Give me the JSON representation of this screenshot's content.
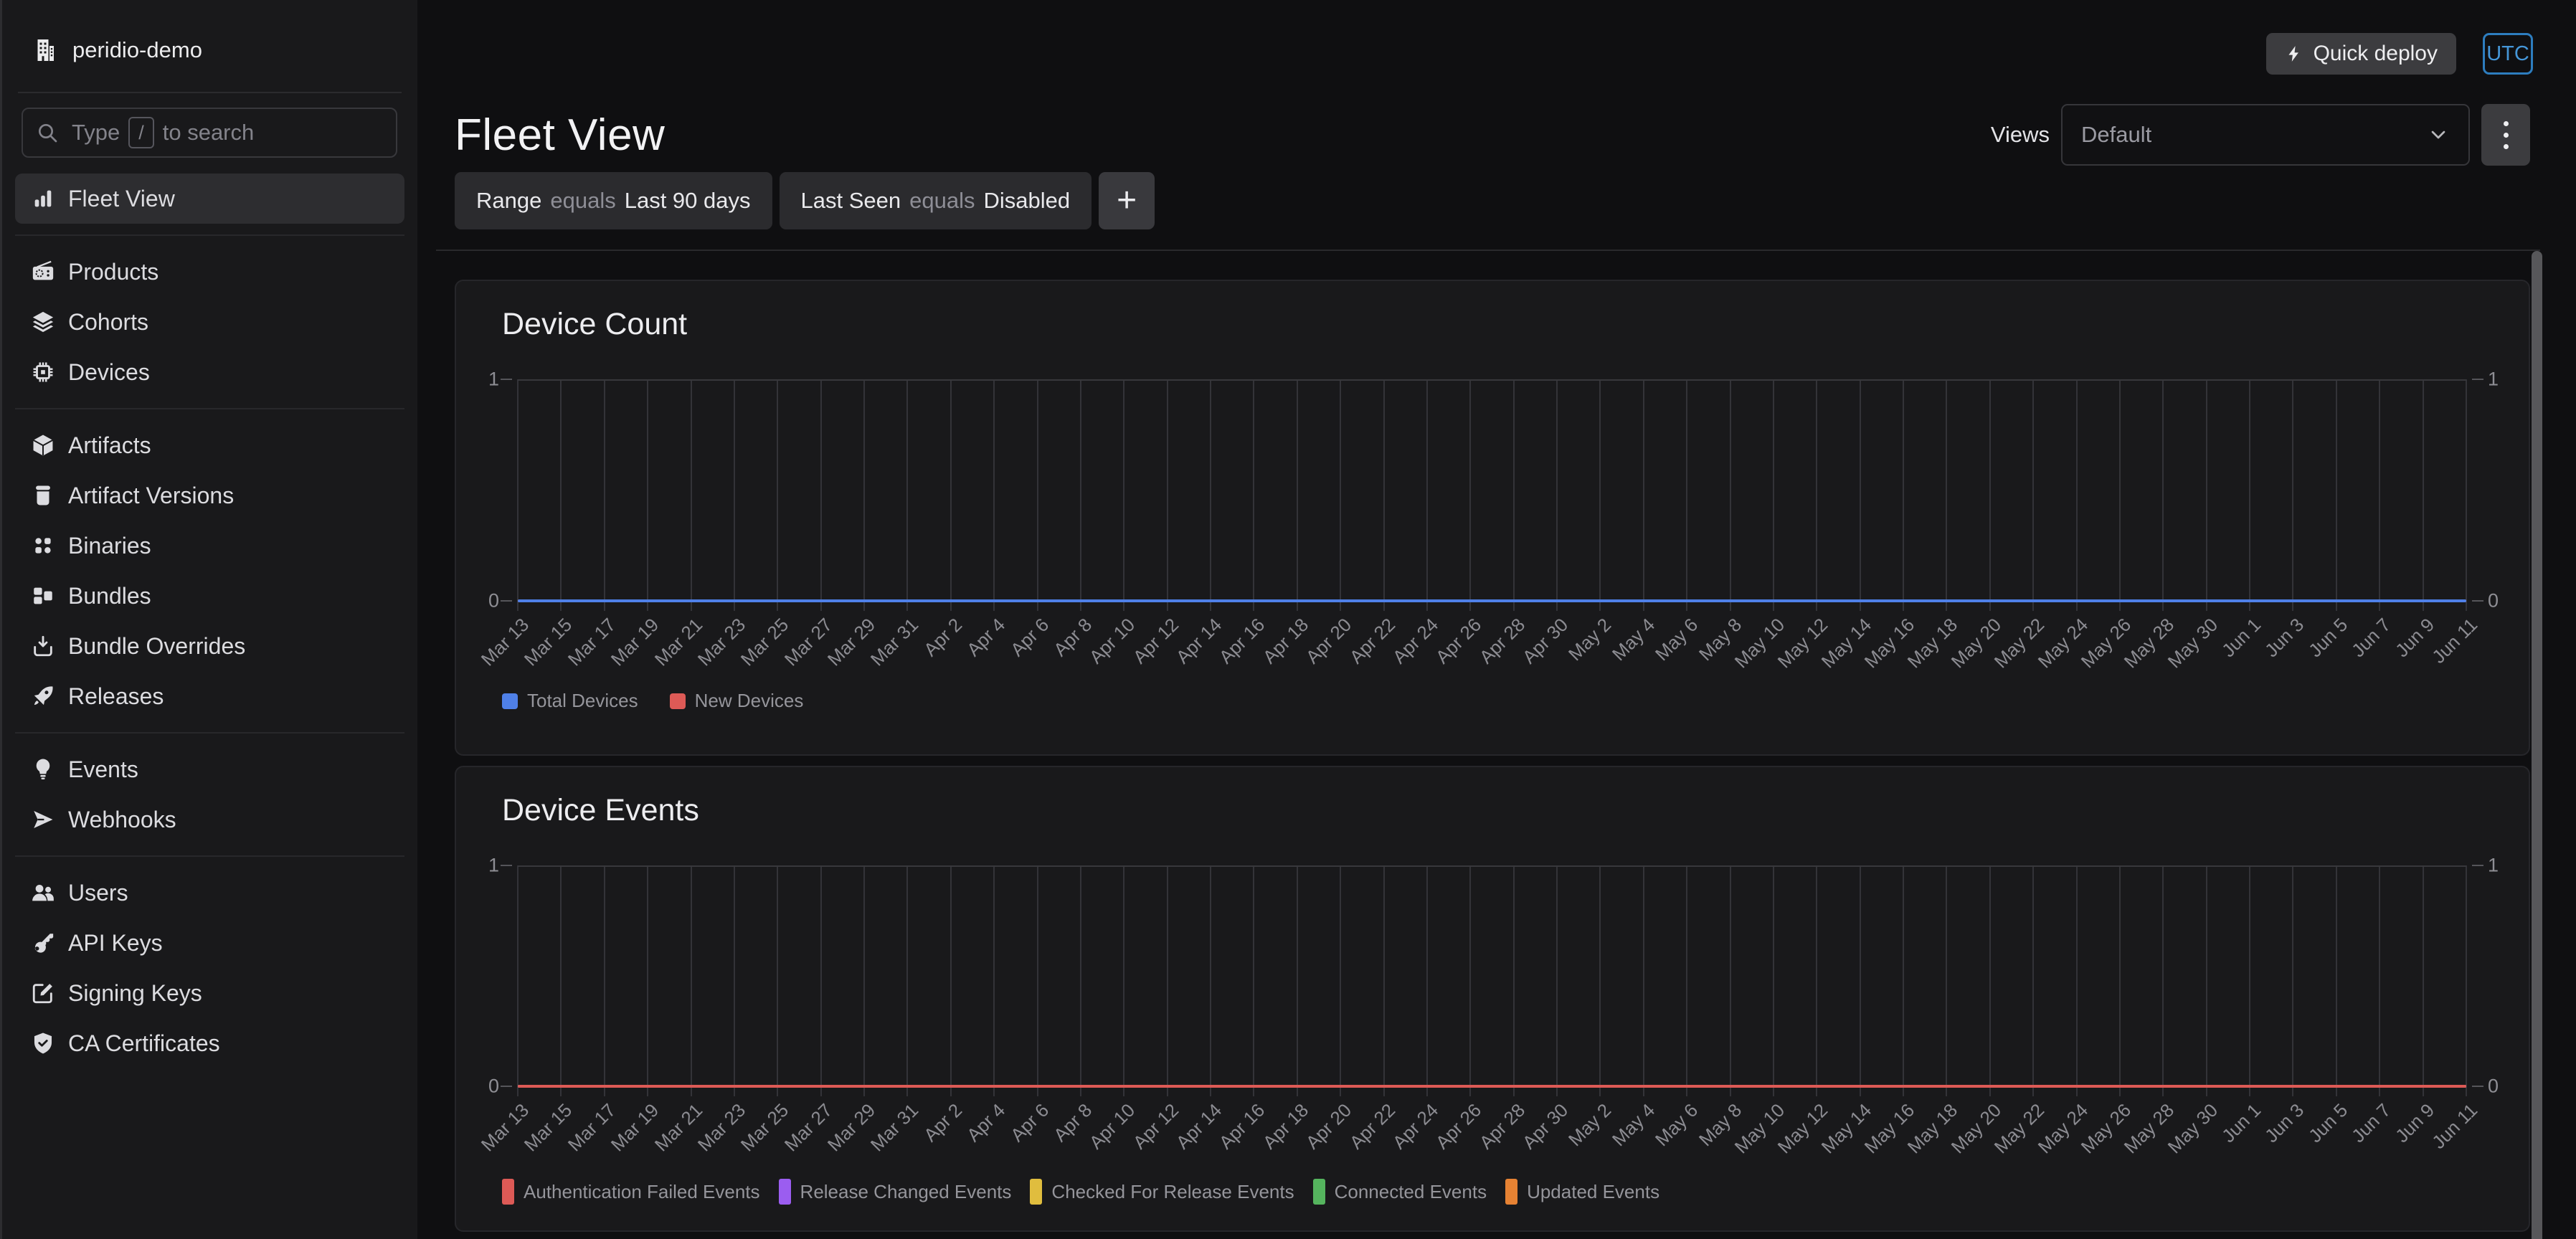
{
  "sidebar": {
    "org_name": "peridio-demo",
    "search": {
      "prefix": "Type",
      "key_hint": "/",
      "suffix": "to search"
    },
    "sections": [
      {
        "items": [
          {
            "label": "Fleet View",
            "icon": "bar-chart",
            "active": true
          }
        ]
      },
      {
        "items": [
          {
            "label": "Products",
            "icon": "radio"
          },
          {
            "label": "Cohorts",
            "icon": "layers"
          },
          {
            "label": "Devices",
            "icon": "chip"
          }
        ]
      },
      {
        "items": [
          {
            "label": "Artifacts",
            "icon": "cube"
          },
          {
            "label": "Artifact Versions",
            "icon": "jar"
          },
          {
            "label": "Binaries",
            "icon": "binaries"
          },
          {
            "label": "Bundles",
            "icon": "bundles"
          },
          {
            "label": "Bundle Overrides",
            "icon": "bundle-overrides"
          },
          {
            "label": "Releases",
            "icon": "rocket"
          }
        ]
      },
      {
        "items": [
          {
            "label": "Events",
            "icon": "lightbulb"
          },
          {
            "label": "Webhooks",
            "icon": "send"
          }
        ]
      },
      {
        "items": [
          {
            "label": "Users",
            "icon": "users"
          },
          {
            "label": "API Keys",
            "icon": "key"
          },
          {
            "label": "Signing Keys",
            "icon": "pencil-square"
          },
          {
            "label": "CA Certificates",
            "icon": "shield-check"
          }
        ]
      }
    ]
  },
  "topbar": {
    "quick_deploy_label": "Quick deploy",
    "timezone_label": "UTC"
  },
  "header": {
    "title": "Fleet View",
    "views_label": "Views",
    "views_selected": "Default"
  },
  "filters": {
    "chips": [
      {
        "field": "Range",
        "operator": "equals",
        "value": "Last 90 days"
      },
      {
        "field": "Last Seen",
        "operator": "equals",
        "value": "Disabled"
      }
    ],
    "add_label": "+"
  },
  "colors": {
    "timezone_accent": "#4596d8",
    "grid": "#38383c",
    "axis_text": "#8e8e94"
  },
  "chart_data": [
    {
      "type": "line",
      "title": "Device Count",
      "categories": [
        "Mar 13",
        "Mar 15",
        "Mar 17",
        "Mar 19",
        "Mar 21",
        "Mar 23",
        "Mar 25",
        "Mar 27",
        "Mar 29",
        "Mar 31",
        "Apr 2",
        "Apr 4",
        "Apr 6",
        "Apr 8",
        "Apr 10",
        "Apr 12",
        "Apr 14",
        "Apr 16",
        "Apr 18",
        "Apr 20",
        "Apr 22",
        "Apr 24",
        "Apr 26",
        "Apr 28",
        "Apr 30",
        "May 2",
        "May 4",
        "May 6",
        "May 8",
        "May 10",
        "May 12",
        "May 14",
        "May 16",
        "May 18",
        "May 20",
        "May 22",
        "May 24",
        "May 26",
        "May 28",
        "May 30",
        "Jun 1",
        "Jun 3",
        "Jun 5",
        "Jun 7",
        "Jun 9",
        "Jun 11"
      ],
      "series": [
        {
          "name": "Total Devices",
          "color": "#4f80e8",
          "values": [
            0,
            0,
            0,
            0,
            0,
            0,
            0,
            0,
            0,
            0,
            0,
            0,
            0,
            0,
            0,
            0,
            0,
            0,
            0,
            0,
            0,
            0,
            0,
            0,
            0,
            0,
            0,
            0,
            0,
            0,
            0,
            0,
            0,
            0,
            0,
            0,
            0,
            0,
            0,
            0,
            0,
            0,
            0,
            0,
            0,
            0
          ]
        },
        {
          "name": "New Devices",
          "color": "#dd5a56",
          "values": [
            0,
            0,
            0,
            0,
            0,
            0,
            0,
            0,
            0,
            0,
            0,
            0,
            0,
            0,
            0,
            0,
            0,
            0,
            0,
            0,
            0,
            0,
            0,
            0,
            0,
            0,
            0,
            0,
            0,
            0,
            0,
            0,
            0,
            0,
            0,
            0,
            0,
            0,
            0,
            0,
            0,
            0,
            0,
            0,
            0,
            0
          ]
        }
      ],
      "ylim": [
        0,
        1
      ],
      "yticks": [
        0,
        1
      ],
      "grid": "vertical",
      "legend_position": "bottom-left",
      "legend_swatch": "square"
    },
    {
      "type": "line",
      "title": "Device Events",
      "categories": [
        "Mar 13",
        "Mar 15",
        "Mar 17",
        "Mar 19",
        "Mar 21",
        "Mar 23",
        "Mar 25",
        "Mar 27",
        "Mar 29",
        "Mar 31",
        "Apr 2",
        "Apr 4",
        "Apr 6",
        "Apr 8",
        "Apr 10",
        "Apr 12",
        "Apr 14",
        "Apr 16",
        "Apr 18",
        "Apr 20",
        "Apr 22",
        "Apr 24",
        "Apr 26",
        "Apr 28",
        "Apr 30",
        "May 2",
        "May 4",
        "May 6",
        "May 8",
        "May 10",
        "May 12",
        "May 14",
        "May 16",
        "May 18",
        "May 20",
        "May 22",
        "May 24",
        "May 26",
        "May 28",
        "May 30",
        "Jun 1",
        "Jun 3",
        "Jun 5",
        "Jun 7",
        "Jun 9",
        "Jun 11"
      ],
      "series": [
        {
          "name": "Authentication Failed Events",
          "color": "#dd5a56",
          "values": [
            0,
            0,
            0,
            0,
            0,
            0,
            0,
            0,
            0,
            0,
            0,
            0,
            0,
            0,
            0,
            0,
            0,
            0,
            0,
            0,
            0,
            0,
            0,
            0,
            0,
            0,
            0,
            0,
            0,
            0,
            0,
            0,
            0,
            0,
            0,
            0,
            0,
            0,
            0,
            0,
            0,
            0,
            0,
            0,
            0,
            0
          ]
        },
        {
          "name": "Release Changed Events",
          "color": "#9b5df0",
          "values": [
            0,
            0,
            0,
            0,
            0,
            0,
            0,
            0,
            0,
            0,
            0,
            0,
            0,
            0,
            0,
            0,
            0,
            0,
            0,
            0,
            0,
            0,
            0,
            0,
            0,
            0,
            0,
            0,
            0,
            0,
            0,
            0,
            0,
            0,
            0,
            0,
            0,
            0,
            0,
            0,
            0,
            0,
            0,
            0,
            0,
            0
          ]
        },
        {
          "name": "Checked For Release Events",
          "color": "#e0bd3e",
          "values": [
            0,
            0,
            0,
            0,
            0,
            0,
            0,
            0,
            0,
            0,
            0,
            0,
            0,
            0,
            0,
            0,
            0,
            0,
            0,
            0,
            0,
            0,
            0,
            0,
            0,
            0,
            0,
            0,
            0,
            0,
            0,
            0,
            0,
            0,
            0,
            0,
            0,
            0,
            0,
            0,
            0,
            0,
            0,
            0,
            0,
            0
          ]
        },
        {
          "name": "Connected Events",
          "color": "#55b45e",
          "values": [
            0,
            0,
            0,
            0,
            0,
            0,
            0,
            0,
            0,
            0,
            0,
            0,
            0,
            0,
            0,
            0,
            0,
            0,
            0,
            0,
            0,
            0,
            0,
            0,
            0,
            0,
            0,
            0,
            0,
            0,
            0,
            0,
            0,
            0,
            0,
            0,
            0,
            0,
            0,
            0,
            0,
            0,
            0,
            0,
            0,
            0
          ]
        },
        {
          "name": "Updated Events",
          "color": "#e68233",
          "values": [
            0,
            0,
            0,
            0,
            0,
            0,
            0,
            0,
            0,
            0,
            0,
            0,
            0,
            0,
            0,
            0,
            0,
            0,
            0,
            0,
            0,
            0,
            0,
            0,
            0,
            0,
            0,
            0,
            0,
            0,
            0,
            0,
            0,
            0,
            0,
            0,
            0,
            0,
            0,
            0,
            0,
            0,
            0,
            0,
            0,
            0
          ]
        }
      ],
      "ylim": [
        0,
        1
      ],
      "yticks": [
        0,
        1
      ],
      "grid": "vertical",
      "legend_position": "bottom-left",
      "legend_swatch": "tall"
    }
  ]
}
